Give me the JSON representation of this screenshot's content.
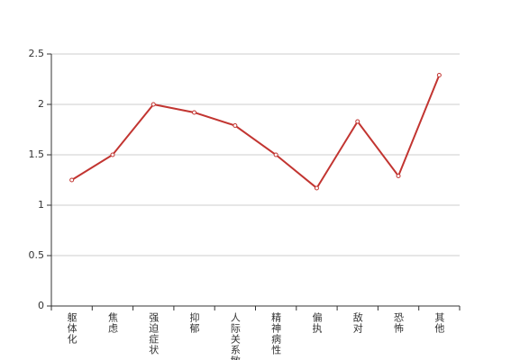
{
  "chart_data": {
    "type": "line",
    "categories": [
      "躯体化",
      "焦虑",
      "强迫症状",
      "抑郁",
      "人际关系敏感",
      "精神病性",
      "偏执",
      "敌对",
      "恐怖",
      "其他"
    ],
    "values": [
      1.25,
      1.5,
      2.0,
      1.92,
      1.79,
      1.5,
      1.17,
      1.83,
      1.29,
      2.29
    ],
    "color": "#c23531",
    "ylim": [
      0,
      2.5
    ],
    "yticks": [
      0,
      0.5,
      1,
      1.5,
      2,
      2.5
    ],
    "grid": true
  }
}
